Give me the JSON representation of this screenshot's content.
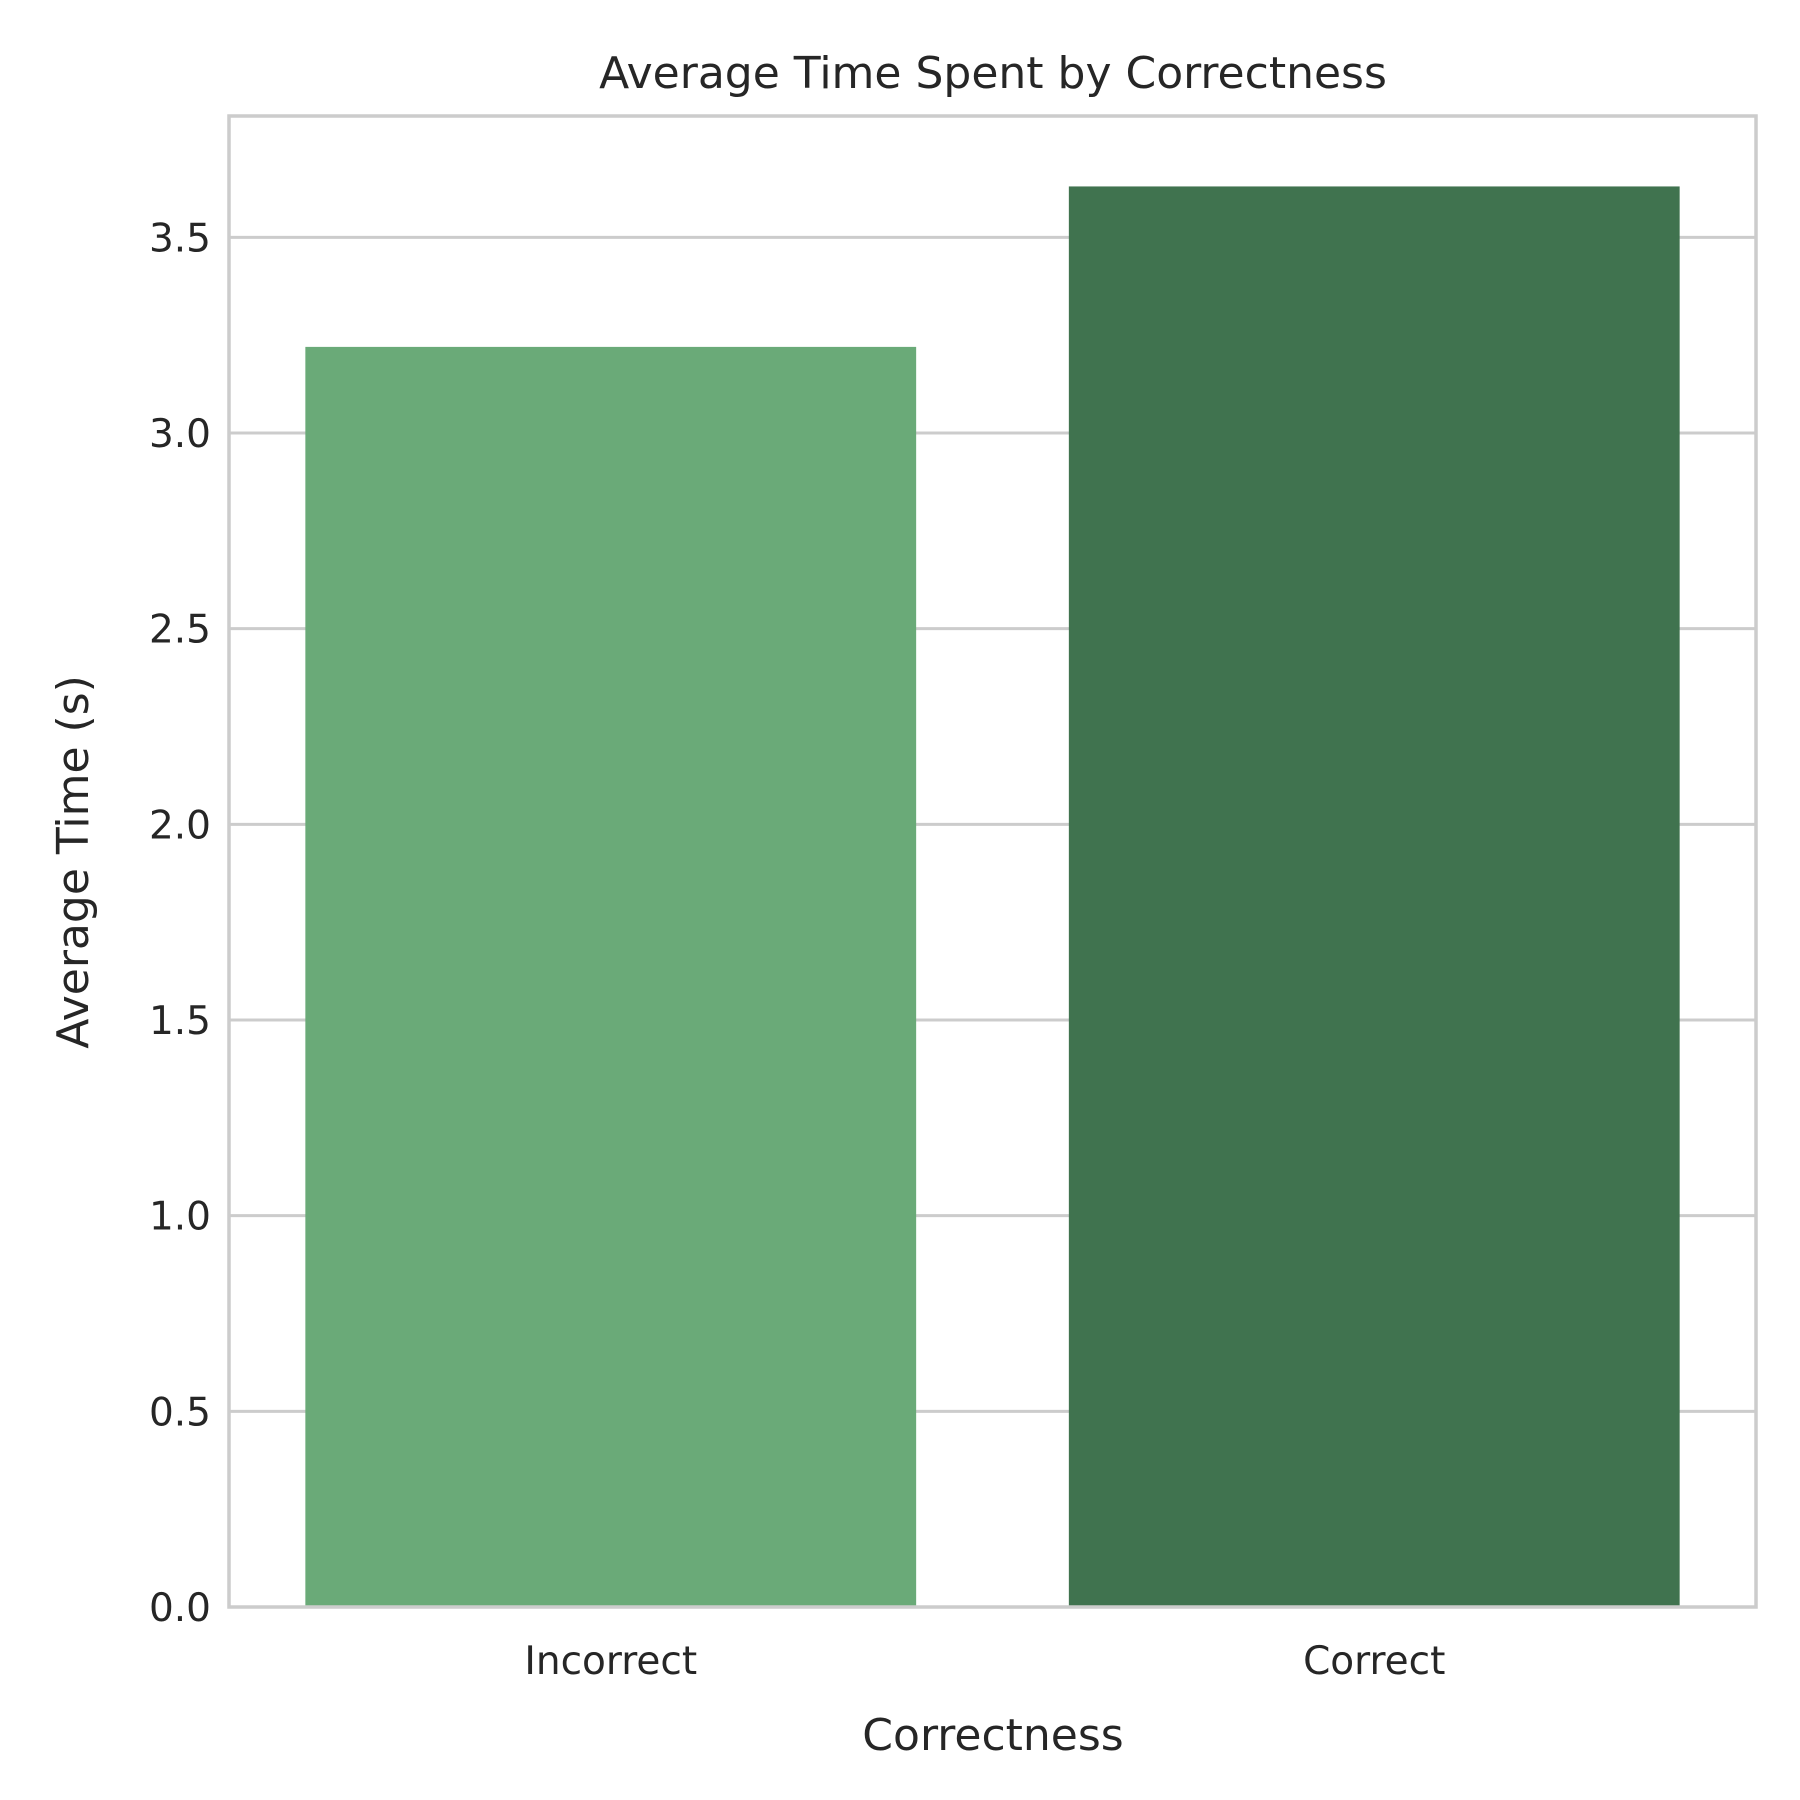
{
  "chart_data": {
    "type": "bar",
    "title": "Average Time Spent by Correctness",
    "xlabel": "Correctness",
    "ylabel": "Average Time (s)",
    "categories": [
      "Incorrect",
      "Correct"
    ],
    "values": [
      3.22,
      3.63
    ],
    "colors": [
      "#6aaa78",
      "#40734f"
    ],
    "ylim": [
      0,
      3.81
    ],
    "yticks": [
      0.0,
      0.5,
      1.0,
      1.5,
      2.0,
      2.5,
      3.0,
      3.5
    ],
    "ytick_labels": [
      "0.0",
      "0.5",
      "1.0",
      "1.5",
      "2.0",
      "2.5",
      "3.0",
      "3.5"
    ],
    "grid": "horizontal",
    "legend": "none"
  }
}
